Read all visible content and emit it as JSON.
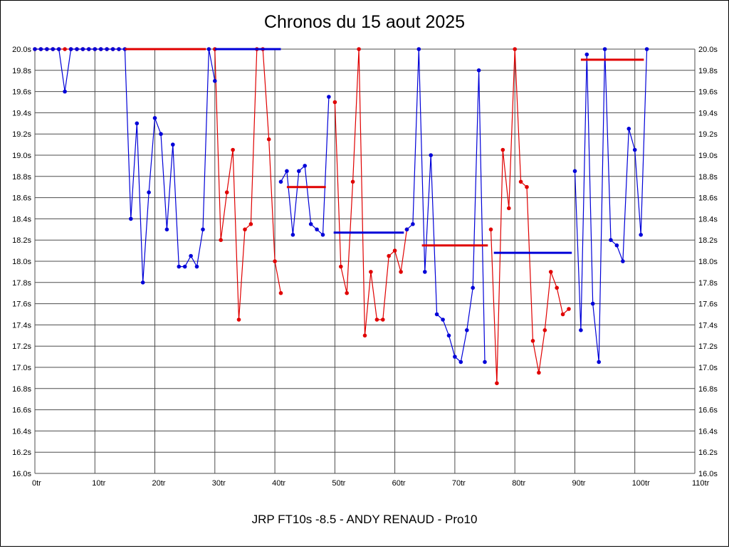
{
  "chart_data": {
    "type": "line",
    "title": "Chronos du 15 aout 2025",
    "caption": "JRP FT10s -8.5 - ANDY RENAUD - Pro10",
    "xlim": [
      0,
      110
    ],
    "ylim": [
      16.0,
      20.0
    ],
    "x_tick_suffix": "tr",
    "y_tick_suffix": "s",
    "x_ticks": [
      0,
      10,
      20,
      30,
      40,
      50,
      60,
      70,
      80,
      90,
      100,
      110
    ],
    "y_ticks": [
      16.0,
      16.2,
      16.4,
      16.6,
      16.8,
      17.0,
      17.2,
      17.4,
      17.6,
      17.8,
      18.0,
      18.2,
      18.4,
      18.6,
      18.8,
      19.0,
      19.2,
      19.4,
      19.6,
      19.8,
      20.0
    ],
    "grid": true,
    "grid_color": "#4d4d4d",
    "legend": "none",
    "series": [
      {
        "name": "red-series",
        "color": "#e00000",
        "runs": [
          [
            [
              0,
              20
            ],
            [
              1,
              20
            ],
            [
              2,
              20
            ],
            [
              3,
              20
            ],
            [
              4,
              20
            ],
            [
              5,
              20
            ],
            [
              6,
              20
            ],
            [
              7,
              20
            ],
            [
              8,
              20
            ],
            [
              9,
              20
            ],
            [
              10,
              20
            ],
            [
              11,
              20
            ],
            [
              12,
              20
            ],
            [
              13,
              20
            ],
            [
              14,
              20
            ]
          ],
          [
            [
              30,
              20.0
            ],
            [
              31,
              18.2
            ],
            [
              32,
              18.65
            ],
            [
              33,
              19.05
            ],
            [
              34,
              17.45
            ],
            [
              35,
              18.3
            ],
            [
              36,
              18.35
            ],
            [
              37,
              20.0
            ],
            [
              38,
              20.0
            ],
            [
              39,
              19.15
            ],
            [
              40,
              18.0
            ],
            [
              41,
              17.7
            ]
          ],
          [
            [
              50,
              19.5
            ],
            [
              51,
              17.95
            ],
            [
              52,
              17.7
            ],
            [
              53,
              18.75
            ],
            [
              54,
              20.0
            ],
            [
              55,
              17.3
            ],
            [
              56,
              17.9
            ],
            [
              57,
              17.45
            ],
            [
              58,
              17.45
            ],
            [
              59,
              18.05
            ],
            [
              60,
              18.1
            ],
            [
              61,
              17.9
            ],
            [
              62,
              18.3
            ]
          ],
          [
            [
              76,
              18.3
            ],
            [
              77,
              16.85
            ],
            [
              78,
              19.05
            ],
            [
              79,
              18.5
            ],
            [
              80,
              20.0
            ],
            [
              81,
              18.75
            ],
            [
              82,
              18.7
            ],
            [
              83,
              17.25
            ],
            [
              84,
              16.95
            ],
            [
              85,
              17.35
            ],
            [
              86,
              17.9
            ],
            [
              87,
              17.75
            ],
            [
              88,
              17.5
            ],
            [
              89,
              17.55
            ]
          ]
        ]
      },
      {
        "name": "blue-series",
        "color": "#0000d8",
        "runs": [
          [
            [
              0,
              20
            ],
            [
              1,
              20
            ],
            [
              2,
              20
            ],
            [
              3,
              20
            ],
            [
              4,
              20
            ],
            [
              5,
              19.6
            ],
            [
              6,
              20
            ],
            [
              7,
              20
            ],
            [
              8,
              20
            ],
            [
              9,
              20
            ],
            [
              10,
              20
            ],
            [
              11,
              20
            ],
            [
              12,
              20
            ],
            [
              13,
              20
            ],
            [
              14,
              20
            ],
            [
              15,
              20
            ],
            [
              16,
              18.4
            ],
            [
              17,
              19.3
            ],
            [
              18,
              17.8
            ],
            [
              19,
              18.65
            ],
            [
              20,
              19.35
            ],
            [
              21,
              19.2
            ],
            [
              22,
              18.3
            ],
            [
              23,
              19.1
            ],
            [
              24,
              17.95
            ],
            [
              25,
              17.95
            ],
            [
              26,
              18.05
            ],
            [
              27,
              17.95
            ],
            [
              28,
              18.3
            ],
            [
              29,
              20.0
            ],
            [
              30,
              19.7
            ]
          ],
          [
            [
              41,
              18.75
            ],
            [
              42,
              18.85
            ],
            [
              43,
              18.25
            ],
            [
              44,
              18.85
            ],
            [
              45,
              18.9
            ],
            [
              46,
              18.35
            ],
            [
              47,
              18.3
            ],
            [
              48,
              18.25
            ],
            [
              49,
              19.55
            ]
          ],
          [
            [
              62,
              18.3
            ],
            [
              63,
              18.35
            ],
            [
              64,
              20.0
            ],
            [
              65,
              17.9
            ],
            [
              66,
              19.0
            ],
            [
              67,
              17.5
            ],
            [
              68,
              17.45
            ],
            [
              69,
              17.3
            ],
            [
              70,
              17.1
            ],
            [
              71,
              17.05
            ],
            [
              72,
              17.35
            ],
            [
              73,
              17.75
            ],
            [
              74,
              19.8
            ],
            [
              75,
              17.05
            ]
          ],
          [
            [
              90,
              18.85
            ],
            [
              91,
              17.35
            ],
            [
              92,
              19.95
            ],
            [
              93,
              17.6
            ],
            [
              94,
              17.05
            ],
            [
              95,
              20.0
            ],
            [
              96,
              18.2
            ],
            [
              97,
              18.15
            ],
            [
              98,
              18.0
            ],
            [
              99,
              19.25
            ],
            [
              100,
              19.05
            ],
            [
              101,
              18.25
            ],
            [
              102,
              20.0
            ]
          ]
        ]
      }
    ],
    "segments": [
      {
        "name": "average-segment-1",
        "color": "#e00000",
        "x1": 15,
        "x2": 28.5,
        "y": 20.0
      },
      {
        "name": "average-segment-2",
        "color": "#0000d8",
        "x1": 30,
        "x2": 41,
        "y": 20.0
      },
      {
        "name": "average-segment-3",
        "color": "#e00000",
        "x1": 42,
        "x2": 48.5,
        "y": 18.7
      },
      {
        "name": "average-segment-4",
        "color": "#0000d8",
        "x1": 49.8,
        "x2": 61.5,
        "y": 18.27
      },
      {
        "name": "average-segment-5",
        "color": "#e00000",
        "x1": 64.5,
        "x2": 75.5,
        "y": 18.15
      },
      {
        "name": "average-segment-6",
        "color": "#0000d8",
        "x1": 76.5,
        "x2": 89.5,
        "y": 18.08
      },
      {
        "name": "average-segment-7",
        "color": "#e00000",
        "x1": 91,
        "x2": 101.5,
        "y": 19.9
      }
    ]
  }
}
